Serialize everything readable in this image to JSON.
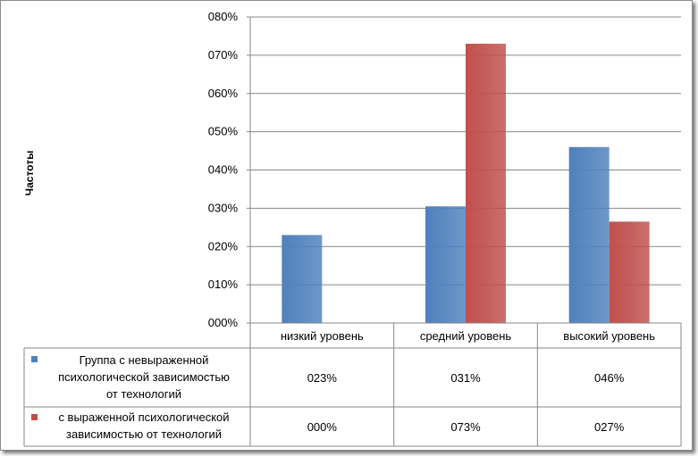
{
  "chart_data": {
    "type": "bar",
    "xlabel": "",
    "ylabel": "Частоты",
    "ylim": [
      0,
      80
    ],
    "y_ticks": [
      "000%",
      "010%",
      "020%",
      "030%",
      "040%",
      "050%",
      "060%",
      "070%",
      "080%"
    ],
    "categories": [
      "низкий уровень",
      "средний уровень",
      "высокий уровень"
    ],
    "series": [
      {
        "name": "Группа с невыраженной психологической зависимостью от технологий",
        "values": [
          23,
          30.5,
          46
        ],
        "labels": [
          "023%",
          "031%",
          "046%"
        ],
        "color": "#4f81bd"
      },
      {
        "name": "с выраженной психологической зависимостью от технологий",
        "values": [
          0,
          73,
          26.5
        ],
        "labels": [
          "000%",
          "073%",
          "027%"
        ],
        "color": "#c0504d"
      }
    ],
    "grid": true,
    "legend": "data-table"
  },
  "legend_rows": [
    {
      "lines": [
        "Группа с невыраженной",
        "психологической зависимостью",
        "от технологий"
      ]
    },
    {
      "lines": [
        "с выраженной психологической",
        "зависимостью от технологий"
      ]
    }
  ]
}
